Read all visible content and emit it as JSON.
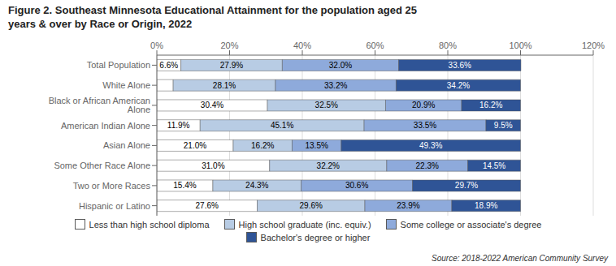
{
  "chart_data": {
    "type": "bar",
    "orientation": "horizontal",
    "stacked": true,
    "data_labels": true,
    "grid": true,
    "title": "Figure 2. Southeast Minnesota Educational Attainment for the population aged 25\nyears & over by Race or Origin, 2022",
    "annotations": [
      "Source: 2018-2022 American Community Survey"
    ],
    "categories": [
      "Total Population",
      "White Alone",
      "Black or African American Alone",
      "American Indian Alone",
      "Asian Alone",
      "Some Other Race Alone",
      "Two or More Races",
      "Hispanic or Latino"
    ],
    "series": [
      {
        "name": "Less than high school diploma",
        "color": "#ffffff",
        "values": [
          6.6,
          4.5,
          30.4,
          11.9,
          21.0,
          31.0,
          15.4,
          27.6
        ],
        "value_labels": [
          "6.6%",
          null,
          "30.4%",
          "11.9%",
          "21.0%",
          "31.0%",
          "15.4%",
          "27.6%"
        ]
      },
      {
        "name": "High school graduate (inc. equiv.)",
        "color": "#b8cce4",
        "values": [
          27.9,
          28.1,
          32.5,
          45.1,
          16.2,
          32.2,
          24.3,
          29.6
        ],
        "value_labels": [
          "27.9%",
          "28.1%",
          "32.5%",
          "45.1%",
          "16.2%",
          "32.2%",
          "24.3%",
          "29.6%"
        ]
      },
      {
        "name": "Some college or associate's degree",
        "color": "#8eaadb",
        "values": [
          32.0,
          33.2,
          20.9,
          33.5,
          13.5,
          22.3,
          30.6,
          23.9
        ],
        "value_labels": [
          "32.0%",
          "33.2%",
          "20.9%",
          "33.5%",
          "13.5%",
          "22.3%",
          "30.6%",
          "23.9%"
        ]
      },
      {
        "name": "Bachelor's degree or higher",
        "color": "#2f5496",
        "values": [
          33.6,
          34.2,
          16.2,
          9.5,
          49.3,
          14.5,
          29.7,
          18.9
        ],
        "value_labels": [
          "33.6%",
          "34.2%",
          "16.2%",
          "9.5%",
          "49.3%",
          "14.5%",
          "29.7%",
          "18.9%"
        ]
      }
    ],
    "xlim": [
      0,
      120
    ],
    "xticks": [
      {
        "value": 0,
        "label": "0%"
      },
      {
        "value": 20,
        "label": "20%"
      },
      {
        "value": 40,
        "label": "40%"
      },
      {
        "value": 60,
        "label": "60%"
      },
      {
        "value": 80,
        "label": "80%"
      },
      {
        "value": 100,
        "label": "100%"
      },
      {
        "value": 120,
        "label": "120%"
      }
    ]
  }
}
